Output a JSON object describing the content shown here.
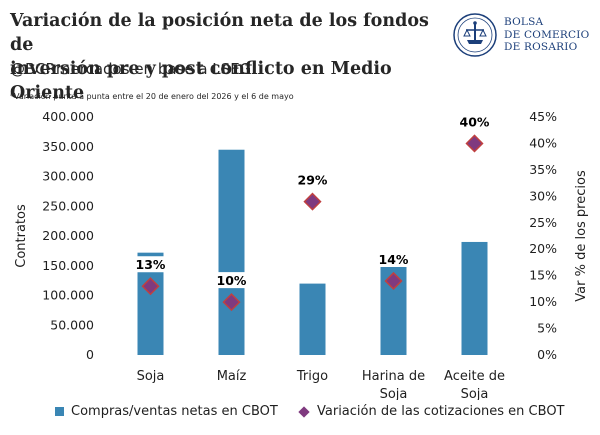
{
  "header": {
    "title_line1": "Variación de la posición neta de los fondos de",
    "title_line2": "inversión pre y post conflicto en Medio Oriente",
    "subtitle": "@BCRmercados en base a LSEG",
    "note": "*Variación punta a punta entre el 20 de enero del 2026 y el 6 de mayo"
  },
  "logo": {
    "line1": "BOLSA",
    "line2": "DE COMERCIO",
    "line3": "DE ROSARIO",
    "icon": "bcr-crest-icon"
  },
  "colors": {
    "bar": "#3a86b4",
    "marker": "#7f3a7f",
    "marker_stroke": "#c04040",
    "grid": "#d9d9d9"
  },
  "chart_data": {
    "type": "bar",
    "categories": [
      "Soja",
      "Maíz",
      "Trigo",
      "Harina de Soja",
      "Aceite de Soja"
    ],
    "category_lines": [
      [
        "Soja"
      ],
      [
        "Maíz"
      ],
      [
        "Trigo"
      ],
      [
        "Harina de",
        "Soja"
      ],
      [
        "Aceite de",
        "Soja"
      ]
    ],
    "series": [
      {
        "name": "Compras/ventas netas en CBOT",
        "type": "bar",
        "axis": "left",
        "values": [
          172000,
          345000,
          120000,
          148000,
          190000
        ]
      },
      {
        "name": "Variación de las cotizaciones en CBOT",
        "type": "scatter",
        "axis": "right",
        "values": [
          13,
          10,
          29,
          14,
          40
        ],
        "labels": [
          "13%",
          "10%",
          "29%",
          "14%",
          "40%"
        ]
      }
    ],
    "ylabel": "Contratos",
    "y2label": "Var % de los precios",
    "ylim": [
      0,
      400000
    ],
    "y2lim": [
      0,
      45
    ],
    "yticks": [
      "0",
      "50.000",
      "100.000",
      "150.000",
      "200.000",
      "250.000",
      "300.000",
      "350.000",
      "400.000"
    ],
    "y2ticks": [
      "0%",
      "5%",
      "10%",
      "15%",
      "20%",
      "25%",
      "30%",
      "35%",
      "40%",
      "45%"
    ],
    "grid": false,
    "legend_position": "bottom"
  }
}
